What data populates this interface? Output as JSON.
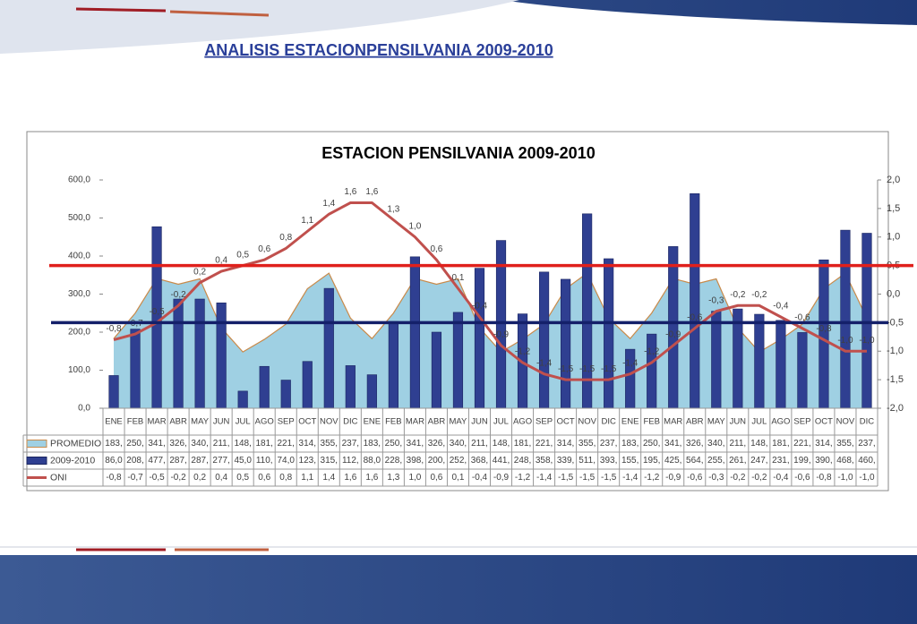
{
  "slide_title": "ANALISIS ESTACIONPENSILVANIA 2009-2010",
  "chart_data": {
    "type": "bar",
    "title": "ESTACION PENSILVANIA 2009-2010",
    "categories": [
      "ENE",
      "FEB",
      "MAR",
      "ABR",
      "MAY",
      "JUN",
      "JUL",
      "AGO",
      "SEP",
      "OCT",
      "NOV",
      "DIC",
      "ENE",
      "FEB",
      "MAR",
      "ABR",
      "MAY",
      "JUN",
      "JUL",
      "AGO",
      "SEP",
      "OCT",
      "NOV",
      "DIC",
      "ENE",
      "FEB",
      "MAR",
      "ABR",
      "MAY",
      "JUN",
      "JUL",
      "AGO",
      "SEP",
      "OCT",
      "NOV",
      "DIC"
    ],
    "series": [
      {
        "name": "PROMEDIO",
        "type": "area",
        "color": "#9fd0e3",
        "outline": "#c98a4a",
        "values": [
          183,
          250,
          341,
          326,
          340,
          211,
          148,
          181,
          221,
          314,
          355,
          237,
          183,
          250,
          341,
          326,
          340,
          211,
          148,
          181,
          221,
          314,
          355,
          237,
          183,
          250,
          341,
          326,
          340,
          211,
          148,
          181,
          221,
          314,
          355,
          237
        ],
        "value_labels": [
          "183,",
          "250,",
          "341,",
          "326,",
          "340,",
          "211,",
          "148,",
          "181,",
          "221,",
          "314,",
          "355,",
          "237,",
          "183,",
          "250,",
          "341,",
          "326,",
          "340,",
          "211,",
          "148,",
          "181,",
          "221,",
          "314,",
          "355,",
          "237,",
          "183,",
          "250,",
          "341,",
          "326,",
          "340,",
          "211,",
          "148,",
          "181,",
          "221,",
          "314,",
          "355,",
          "237,"
        ]
      },
      {
        "name": "2009-2010",
        "type": "bar",
        "color": "#2f3f91",
        "values": [
          86,
          208,
          477,
          287,
          287,
          277,
          45,
          110,
          74,
          123,
          315,
          112,
          88,
          228,
          398,
          200,
          252,
          368,
          441,
          248,
          358,
          339,
          511,
          393,
          155,
          195,
          425,
          564,
          255,
          261,
          247,
          231,
          199,
          390,
          468,
          460
        ],
        "value_labels": [
          "86,0",
          "208,",
          "477,",
          "287,",
          "287,",
          "277,",
          "45,0",
          "110,",
          "74,0",
          "123,",
          "315,",
          "112,",
          "88,0",
          "228,",
          "398,",
          "200,",
          "252,",
          "368,",
          "441,",
          "248,",
          "358,",
          "339,",
          "511,",
          "393,",
          "155,",
          "195,",
          "425,",
          "564,",
          "255,",
          "261,",
          "247,",
          "231,",
          "199,",
          "390,",
          "468,",
          "460,"
        ]
      },
      {
        "name": "ONI",
        "type": "line",
        "axis": "y2",
        "color": "#c0504d",
        "values": [
          -0.8,
          -0.7,
          -0.5,
          -0.2,
          0.2,
          0.4,
          0.5,
          0.6,
          0.8,
          1.1,
          1.4,
          1.6,
          1.6,
          1.3,
          1.0,
          0.6,
          0.1,
          -0.4,
          -0.9,
          -1.2,
          -1.4,
          -1.5,
          -1.5,
          -1.5,
          -1.4,
          -1.2,
          -0.9,
          -0.6,
          -0.3,
          -0.2,
          -0.2,
          -0.4,
          -0.6,
          -0.8,
          -1.0,
          -1.0
        ],
        "value_labels": [
          "-0,8",
          "-0,7",
          "-0,5",
          "-0,2",
          "0,2",
          "0,4",
          "0,5",
          "0,6",
          "0,8",
          "1,1",
          "1,4",
          "1,6",
          "1,6",
          "1,3",
          "1,0",
          "0,6",
          "0,1",
          "-0,4",
          "-0,9",
          "-1,2",
          "-1,4",
          "-1,5",
          "-1,5",
          "-1,5",
          "-1,4",
          "-1,2",
          "-0,9",
          "-0,6",
          "-0,3",
          "-0,2",
          "-0,2",
          "-0,4",
          "-0,6",
          "-0,8",
          "-1,0",
          "-1,0"
        ]
      }
    ],
    "ylim": [
      0,
      600
    ],
    "yticks": [
      {
        "value": 0,
        "label": "0,0"
      },
      {
        "value": 100,
        "label": "100,0"
      },
      {
        "value": 200,
        "label": "200,0"
      },
      {
        "value": 300,
        "label": "300,0"
      },
      {
        "value": 400,
        "label": "400,0"
      },
      {
        "value": 500,
        "label": "500,0"
      },
      {
        "value": 600,
        "label": "600,0"
      }
    ],
    "y2lim": [
      -2,
      2
    ],
    "y2ticks": [
      {
        "value": -2,
        "label": "-2,0"
      },
      {
        "value": -1.5,
        "label": "-1,5"
      },
      {
        "value": -1,
        "label": "-1,0"
      },
      {
        "value": -0.5,
        "label": "-0,5"
      },
      {
        "value": 0,
        "label": "0,0"
      },
      {
        "value": 0.5,
        "label": "0,5"
      },
      {
        "value": 1,
        "label": "1,0"
      },
      {
        "value": 1.5,
        "label": "1,5"
      },
      {
        "value": 2,
        "label": "2,0"
      }
    ],
    "reference_lines": [
      {
        "value": 0.5,
        "axis": "y2",
        "color": "#e0201c"
      },
      {
        "value": -0.5,
        "axis": "y2",
        "color": "#14206a"
      }
    ]
  }
}
